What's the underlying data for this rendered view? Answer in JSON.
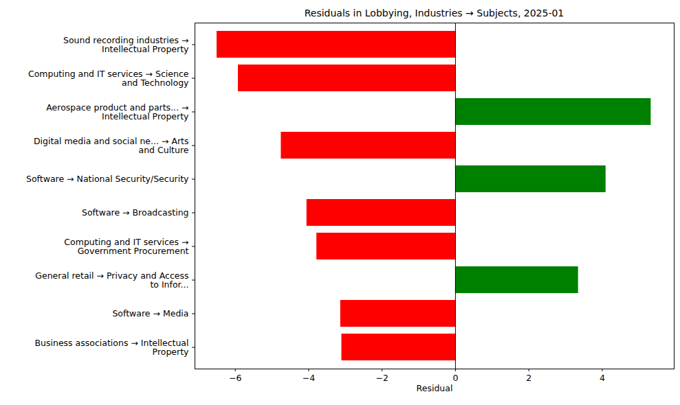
{
  "chart_data": {
    "type": "bar",
    "orientation": "horizontal",
    "title": "Residuals in Lobbying, Industries → Subjects, 2025-01",
    "x_label": "Residual",
    "categories": [
      "Sound recording industries →\nIntellectual Property",
      "Computing and IT services → Science\nand Technology",
      "Aerospace product and parts... →\nIntellectual Property",
      "Digital media and social ne... → Arts\nand Culture",
      "Software → National Security/Security",
      "Software → Broadcasting",
      "Computing and IT services →\nGovernment Procurement",
      "General retail → Privacy and Access\nto Infor...",
      "Software → Media",
      "Business associations → Intellectual\nProperty"
    ],
    "values": [
      -6.5,
      -5.92,
      5.33,
      -4.75,
      4.1,
      -4.05,
      -3.78,
      3.35,
      -3.13,
      -3.1
    ],
    "colors": [
      "red",
      "red",
      "green",
      "red",
      "green",
      "red",
      "red",
      "green",
      "red",
      "red"
    ],
    "xlim": [
      -7.1,
      5.96
    ],
    "xticks": [
      -6,
      -4,
      -2,
      0,
      2,
      4
    ],
    "grid": false
  }
}
